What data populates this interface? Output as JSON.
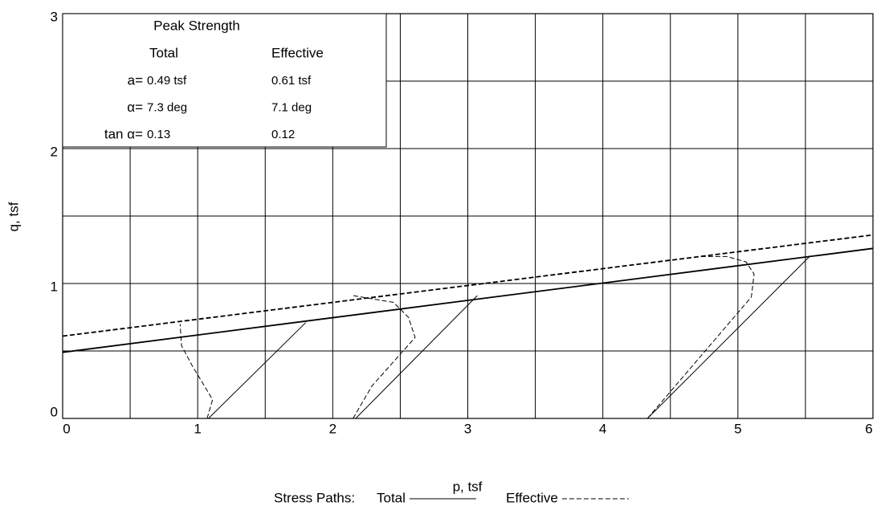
{
  "chart_data": {
    "type": "line",
    "xlabel": "p, tsf",
    "ylabel": "q, tsf",
    "xlim": [
      0,
      6
    ],
    "ylim": [
      0,
      3
    ],
    "xticks": [
      0,
      1,
      2,
      3,
      4,
      5,
      6
    ],
    "yticks": [
      0,
      1,
      2,
      3
    ],
    "minor_xticks": [
      0.5,
      1.5,
      2.5,
      3.5,
      4.5,
      5.5
    ],
    "minor_yticks": [
      0.5,
      1.5,
      2.5
    ],
    "grid": true,
    "legend_title": "Stress Paths:",
    "series": [
      {
        "name": "Total",
        "color": "#000000",
        "dashed": false,
        "envelope": {
          "x": [
            0,
            6
          ],
          "values": [
            0.49,
            1.26
          ]
        },
        "paths": [
          {
            "x": [
              1.08,
              1.8
            ],
            "values": [
              0,
              0.71
            ]
          },
          {
            "x": [
              2.17,
              3.07
            ],
            "values": [
              0,
              0.91
            ]
          },
          {
            "x": [
              4.33,
              5.53
            ],
            "values": [
              0,
              1.2
            ]
          }
        ]
      },
      {
        "name": "Effective",
        "color": "#000000",
        "dashed": true,
        "envelope": {
          "x": [
            0,
            6
          ],
          "values": [
            0.61,
            1.36
          ]
        },
        "paths": [
          {
            "x": [
              1.07,
              1.11,
              0.96,
              0.88,
              0.87
            ],
            "values": [
              0,
              0.14,
              0.39,
              0.54,
              0.7
            ]
          },
          {
            "x": [
              2.15,
              2.29,
              2.61,
              2.56,
              2.45,
              2.15
            ],
            "values": [
              0,
              0.24,
              0.6,
              0.75,
              0.86,
              0.91
            ]
          },
          {
            "x": [
              4.33,
              5.1,
              5.12,
              5.06,
              4.92,
              4.71
            ],
            "values": [
              0,
              0.9,
              1.07,
              1.16,
              1.2,
              1.2
            ]
          }
        ]
      }
    ],
    "summary": {
      "title": "Peak Strength",
      "columns": [
        "Total",
        "Effective"
      ],
      "rows": [
        {
          "label": "a=",
          "values": [
            "0.49 tsf",
            "0.61 tsf"
          ]
        },
        {
          "label": "α=",
          "values": [
            "7.3 deg",
            "7.1 deg"
          ]
        },
        {
          "label": "tan α=",
          "values": [
            "0.13",
            "0.12"
          ]
        }
      ]
    }
  }
}
